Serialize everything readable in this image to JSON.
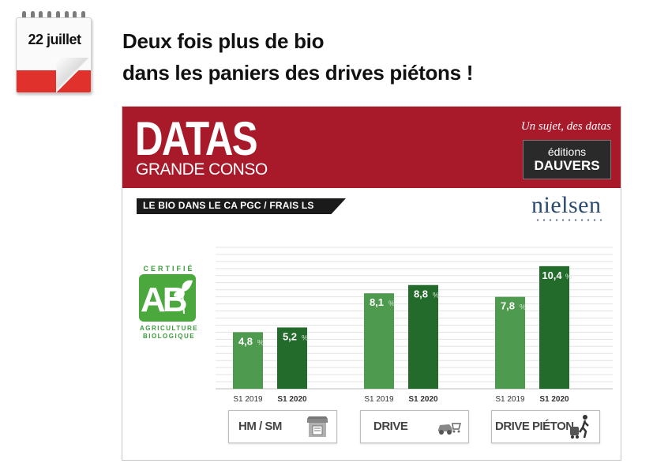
{
  "calendar": {
    "date": "22 juillet"
  },
  "headline": {
    "line1": "Deux fois plus de bio",
    "line2": "dans les paniers des drives piétons !"
  },
  "banner": {
    "title": "DATAS",
    "subtitle": "GRANDE CONSO",
    "tagline": "Un sujet, des datas",
    "publisher_line1": "éditions",
    "publisher_line2": "DAUVERS"
  },
  "chart_title": "LE BIO DANS LE CA PGC / FRAIS LS",
  "source": "nielsen",
  "ab_logo": {
    "top": "CERTIFIÉ",
    "letters": "AB",
    "bottom1": "AGRICULTURE",
    "bottom2": "BIOLOGIQUE"
  },
  "colors": {
    "banner": "#a8192a",
    "bar_2019": "#4e9a4e",
    "bar_2020": "#236b2b"
  },
  "chart_data": {
    "type": "bar",
    "title": "LE BIO DANS LE CA PGC / FRAIS LS",
    "categories": [
      "HM / SM",
      "DRIVE",
      "DRIVE PIÉTON"
    ],
    "series": [
      {
        "name": "S1 2019",
        "values": [
          4.8,
          8.1,
          7.8
        ],
        "labels": [
          "4,8",
          "8,1",
          "7,8"
        ]
      },
      {
        "name": "S1 2020",
        "values": [
          5.2,
          8.8,
          10.4
        ],
        "labels": [
          "5,2",
          "8,8",
          "10,4"
        ]
      }
    ],
    "unit": "%",
    "ylim": [
      0,
      12
    ],
    "grid": true,
    "icons": [
      "store-icon",
      "car-cart-icon",
      "pedestrian-cart-icon"
    ]
  }
}
